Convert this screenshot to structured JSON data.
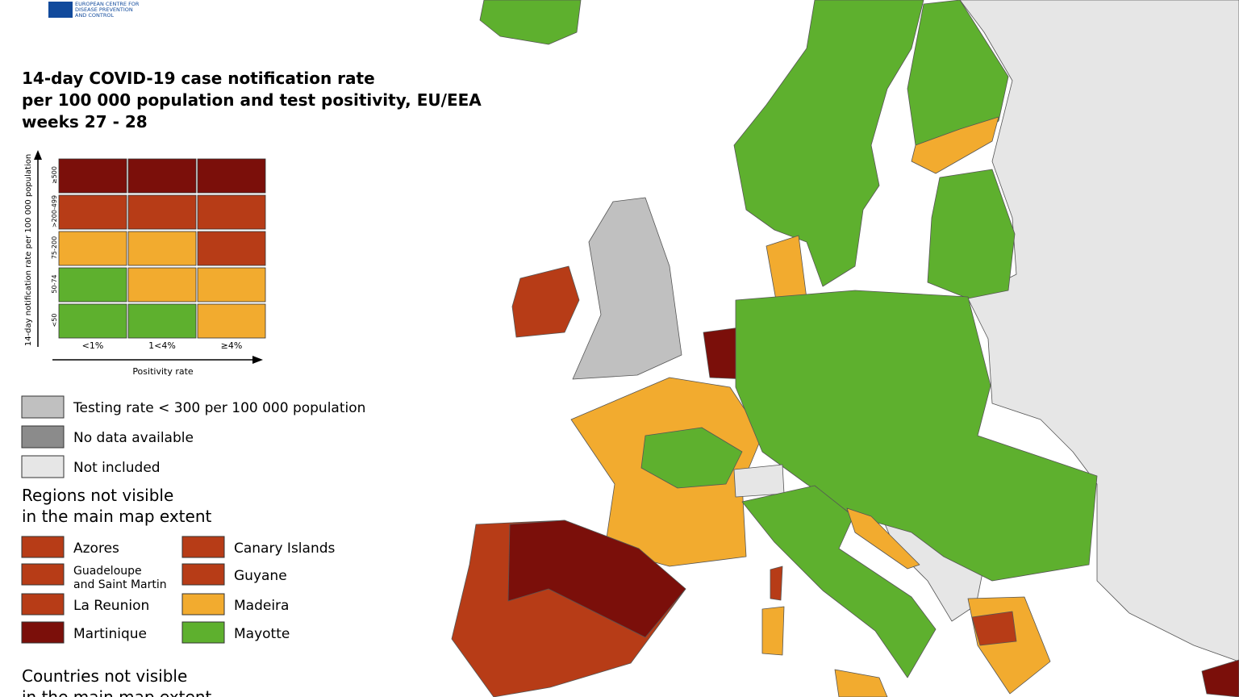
{
  "logo": {
    "lines": [
      "EUROPEAN CENTRE FOR",
      "DISEASE PREVENTION",
      "AND CONTROL"
    ]
  },
  "title": {
    "lines": [
      "14-day COVID-19 case notification rate",
      "per 100 000 population and test positivity, EU/EEA",
      "weeks 27 - 28"
    ]
  },
  "matrix": {
    "y_axis_label": "14-day notification rate per 100 000 population",
    "x_axis_label": "Positivity rate",
    "row_labels": [
      "≥500",
      ">200-499",
      "75-200",
      "50-74",
      "<50"
    ],
    "column_labels": [
      "<1%",
      "1<4%",
      "≥4%"
    ],
    "cell_colors": [
      [
        "#7b0f0a",
        "#7b0f0a",
        "#7b0f0a"
      ],
      [
        "#b73c17",
        "#b73c17",
        "#b73c17"
      ],
      [
        "#f2ab2f",
        "#f2ab2f",
        "#b73c17"
      ],
      [
        "#5eb02e",
        "#f2ab2f",
        "#f2ab2f"
      ],
      [
        "#5eb02e",
        "#5eb02e",
        "#f2ab2f"
      ]
    ]
  },
  "legend": [
    {
      "label": "Testing rate < 300 per 100 000 population",
      "color": "#c0c0c0"
    },
    {
      "label": "No data available",
      "color": "#8b8b8b"
    },
    {
      "label": "Not included",
      "color": "#e6e6e6"
    }
  ],
  "regions": {
    "heading": [
      "Regions not visible",
      "in the main map extent"
    ],
    "columns": [
      [
        {
          "lines": [
            "Azores"
          ],
          "color": "#b73c17"
        },
        {
          "lines": [
            "Guadeloupe",
            "and Saint Martin"
          ],
          "color": "#b73c17"
        },
        {
          "lines": [
            "La Reunion"
          ],
          "color": "#b73c17"
        },
        {
          "lines": [
            "Martinique"
          ],
          "color": "#7b0f0a"
        }
      ],
      [
        {
          "lines": [
            "Canary Islands"
          ],
          "color": "#b73c17"
        },
        {
          "lines": [
            "Guyane"
          ],
          "color": "#b73c17"
        },
        {
          "lines": [
            "Madeira"
          ],
          "color": "#f2ab2f"
        },
        {
          "lines": [
            "Mayotte"
          ],
          "color": "#5eb02e"
        }
      ]
    ]
  },
  "countries": {
    "heading": [
      "Countries not visible",
      "in the main map extent"
    ]
  }
}
